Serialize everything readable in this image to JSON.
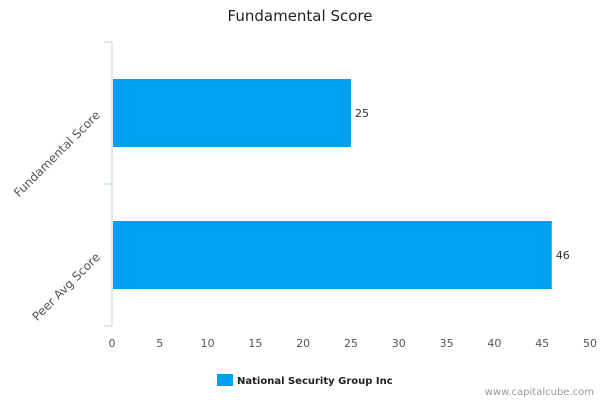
{
  "chart_data": {
    "type": "bar",
    "orientation": "horizontal",
    "title": "Fundamental Score",
    "categories": [
      "Fundamental Score",
      "Peer Avg Score"
    ],
    "series": [
      {
        "name": "National Security Group Inc",
        "values": [
          25,
          46
        ],
        "color": "#00a0f0"
      }
    ],
    "xlim": [
      0,
      50
    ],
    "xticks": [
      "0",
      "5",
      "10",
      "15",
      "20",
      "25",
      "30",
      "35",
      "40",
      "45",
      "50"
    ],
    "grid": false,
    "legend_position": "bottom-center"
  },
  "watermark": "www.capitalcube.com"
}
